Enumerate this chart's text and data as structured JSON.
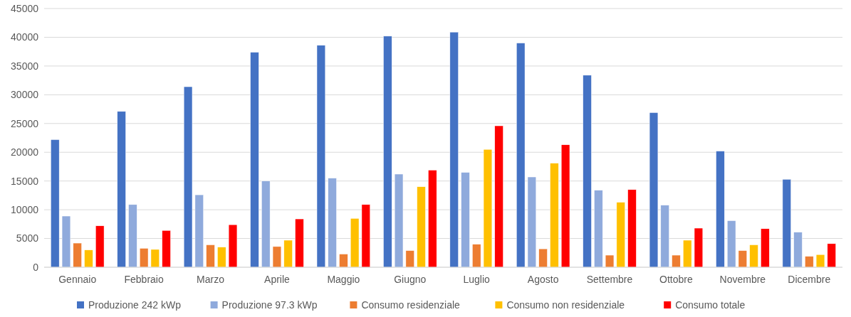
{
  "chart_data": {
    "type": "bar",
    "categories": [
      "Gennaio",
      "Febbraio",
      "Marzo",
      "Aprile",
      "Maggio",
      "Giugno",
      "Luglio",
      "Agosto",
      "Settembre",
      "Ottobre",
      "Novembre",
      "Dicembre"
    ],
    "series": [
      {
        "name": "Produzione 242 kWp",
        "color": "#4472c4",
        "values": [
          22200,
          27100,
          31400,
          37400,
          38600,
          40200,
          40900,
          39000,
          33400,
          26900,
          20200,
          15300
        ]
      },
      {
        "name": "Produzione 97.3 kWp",
        "color": "#8faadc",
        "values": [
          8900,
          10900,
          12600,
          15000,
          15500,
          16200,
          16500,
          15700,
          13400,
          10800,
          8100,
          6100
        ]
      },
      {
        "name": "Consumo residenziale",
        "color": "#ed7d31",
        "values": [
          4200,
          3300,
          3900,
          3600,
          2300,
          2900,
          4000,
          3200,
          2100,
          2100,
          2900,
          1900
        ]
      },
      {
        "name": "Consumo non residenziale",
        "color": "#ffc000",
        "values": [
          3000,
          3100,
          3500,
          4700,
          8500,
          14000,
          20500,
          18100,
          11300,
          4700,
          3900,
          2200
        ]
      },
      {
        "name": "Consumo totale",
        "color": "#ff0000",
        "values": [
          7200,
          6400,
          7400,
          8400,
          10900,
          16900,
          24600,
          21300,
          13500,
          6800,
          6700,
          4100
        ]
      }
    ],
    "ylim": [
      0,
      45000
    ],
    "yticks": [
      0,
      5000,
      10000,
      15000,
      20000,
      25000,
      30000,
      35000,
      40000,
      45000
    ],
    "grid": "y",
    "legend": "bottom"
  }
}
